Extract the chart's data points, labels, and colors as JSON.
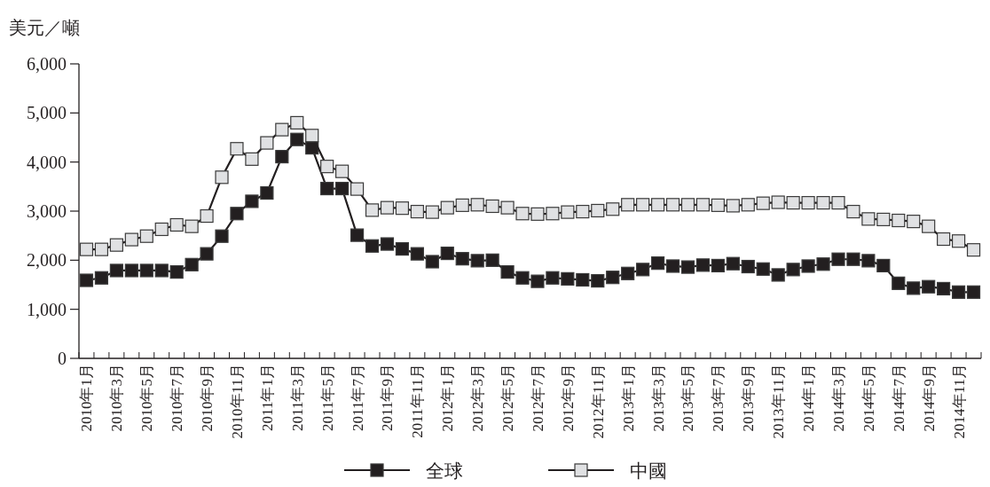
{
  "chart_data": {
    "type": "line",
    "ylabel": "美元／噸",
    "categories": [
      "2010年1月",
      null,
      "2010年3月",
      null,
      "2010年5月",
      null,
      "2010年7月",
      null,
      "2010年9月",
      null,
      "2010年11月",
      null,
      "2011年1月",
      null,
      "2011年3月",
      null,
      "2011年5月",
      null,
      "2011年7月",
      null,
      "2011年9月",
      null,
      "2011年11月",
      null,
      "2012年1月",
      null,
      "2012年3月",
      null,
      "2012年5月",
      null,
      "2012年7月",
      null,
      "2012年9月",
      null,
      "2012年11月",
      null,
      "2013年1月",
      null,
      "2013年3月",
      null,
      "2013年5月",
      null,
      "2013年7月",
      null,
      "2013年9月",
      null,
      "2013年11月",
      null,
      "2014年1月",
      null,
      "2014年3月",
      null,
      "2014年5月",
      null,
      "2014年7月",
      null,
      "2014年9月",
      null,
      "2014年11月",
      null
    ],
    "ylim": [
      0,
      6000
    ],
    "yticks": [
      0,
      {
        "value": 1000,
        "label": "1,000"
      },
      {
        "value": 2000,
        "label": "2,000"
      },
      {
        "value": 3000,
        "label": "3,000"
      },
      {
        "value": 4000,
        "label": "4,000"
      },
      {
        "value": 5000,
        "label": "5,000"
      },
      {
        "value": 6000,
        "label": "6,000"
      }
    ],
    "marker": "square",
    "legend": "bottom",
    "series": [
      {
        "name": "全球",
        "color": "#231f20",
        "values": [
          1590,
          1640,
          1790,
          1790,
          1790,
          1790,
          1760,
          1910,
          2130,
          2490,
          2950,
          3200,
          3370,
          4110,
          4460,
          4290,
          3460,
          3460,
          2510,
          2290,
          2330,
          2230,
          2130,
          1970,
          2140,
          2030,
          1990,
          2000,
          1760,
          1640,
          1570,
          1640,
          1620,
          1600,
          1580,
          1650,
          1730,
          1810,
          1940,
          1880,
          1860,
          1900,
          1890,
          1930,
          1870,
          1820,
          1700,
          1810,
          1880,
          1920,
          2020,
          2020,
          1990,
          1890,
          1530,
          1430,
          1460,
          1420,
          1350,
          1350
        ]
      },
      {
        "name": "中國",
        "color": "#e0e1e3",
        "values": [
          2220,
          2220,
          2310,
          2420,
          2490,
          2630,
          2720,
          2690,
          2900,
          3690,
          4270,
          4060,
          4390,
          4660,
          4800,
          4540,
          3910,
          3810,
          3450,
          3020,
          3070,
          3060,
          2990,
          2980,
          3070,
          3120,
          3130,
          3100,
          3070,
          2950,
          2940,
          2950,
          2980,
          2990,
          3010,
          3040,
          3130,
          3130,
          3130,
          3130,
          3130,
          3130,
          3120,
          3110,
          3130,
          3160,
          3180,
          3170,
          3170,
          3170,
          3170,
          2990,
          2840,
          2830,
          2810,
          2790,
          2690,
          2430,
          2390,
          2210
        ]
      }
    ]
  }
}
